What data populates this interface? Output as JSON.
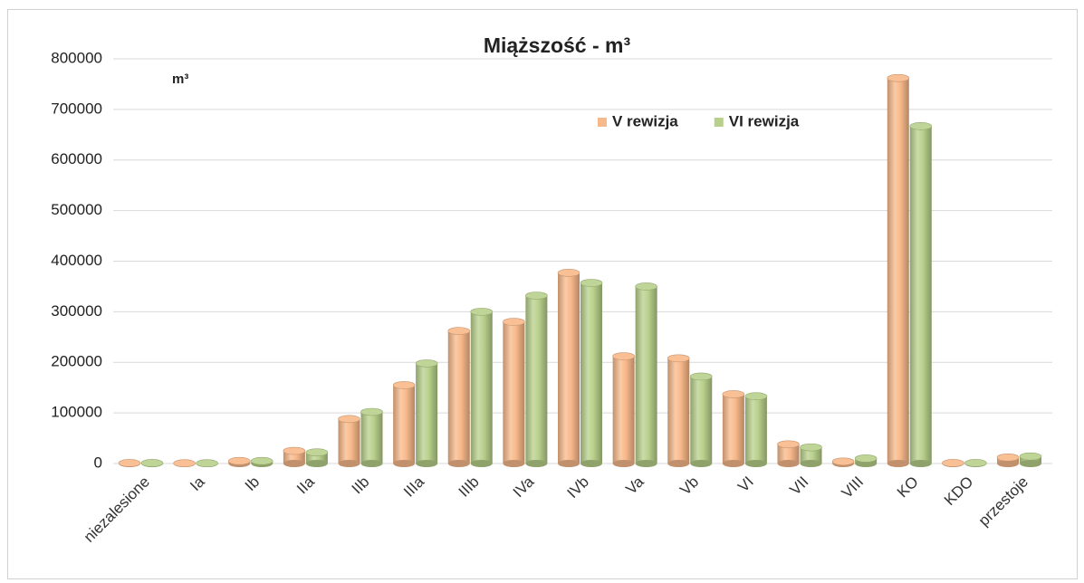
{
  "chart_data": {
    "type": "bar3d",
    "title": "Miąższość - m³",
    "y_unit": "m³",
    "categories": [
      "niezalesione",
      "Ia",
      "Ib",
      "IIa",
      "IIb",
      "IIIa",
      "IIIb",
      "IVa",
      "IVb",
      "Va",
      "Vb",
      "VI",
      "VII",
      "VIII",
      "KO",
      "KDO",
      "przestoje"
    ],
    "series": [
      {
        "name": "V rewizja",
        "color": "#f8b98a",
        "values": [
          1000,
          500,
          5000,
          25000,
          88000,
          155000,
          262000,
          280000,
          377000,
          212000,
          208000,
          137000,
          38000,
          4000,
          762000,
          1000,
          12000
        ]
      },
      {
        "name": "VI rewizja",
        "color": "#b8d08b",
        "values": [
          1000,
          500,
          5000,
          22000,
          102000,
          198000,
          300000,
          332000,
          357000,
          350000,
          172000,
          133000,
          32000,
          10000,
          667000,
          1000,
          14000
        ]
      }
    ],
    "ylim": [
      0,
      800000
    ],
    "yticks": [
      0,
      100000,
      200000,
      300000,
      400000,
      500000,
      600000,
      700000,
      800000
    ],
    "grid": true,
    "legend": "top-right"
  }
}
